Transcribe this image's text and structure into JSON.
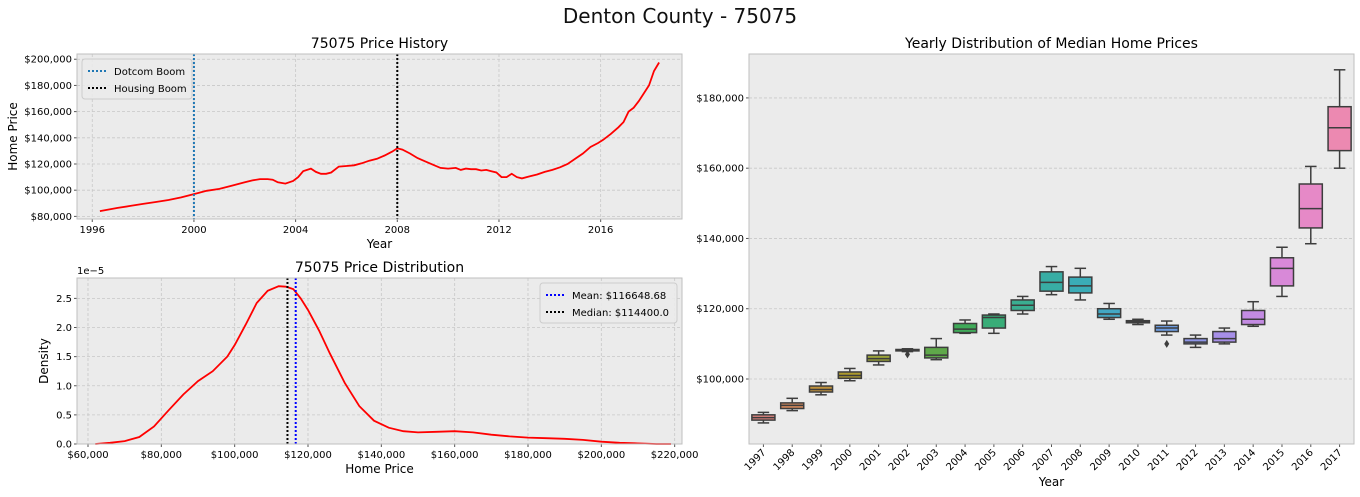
{
  "figure": {
    "suptitle": "Denton County - 75075"
  },
  "colors": {
    "axes_bg": "#ebebeb",
    "grid": "#c8c8c8",
    "spine": "#bfbfbf",
    "line": "#ff0000",
    "mean_line": "#0000ff",
    "median_line": "#000000",
    "dotcom_line": "#1f77b4",
    "housing_line": "#000000"
  },
  "chart_data": [
    {
      "id": "history",
      "type": "line",
      "title": "75075 Price History",
      "xlabel": "Year",
      "ylabel": "Home Price",
      "xlim": [
        1995.4,
        2019.2
      ],
      "ylim": [
        78000,
        204000
      ],
      "xticks": [
        1996,
        2000,
        2004,
        2008,
        2012,
        2016
      ],
      "xtick_labels": [
        "1996",
        "2000",
        "2004",
        "2008",
        "2012",
        "2016"
      ],
      "yticks": [
        80000,
        100000,
        120000,
        140000,
        160000,
        180000,
        200000
      ],
      "ytick_labels": [
        "$80,000",
        "$100,000",
        "$120,000",
        "$140,000",
        "$160,000",
        "$180,000",
        "$200,000"
      ],
      "grid": true,
      "legend": {
        "position": "upper-left",
        "entries": [
          "Dotcom Boom",
          "Housing Boom"
        ]
      },
      "vlines": [
        {
          "x": 2000,
          "label": "Dotcom Boom",
          "color": "#1f77b4"
        },
        {
          "x": 2008,
          "label": "Housing Boom",
          "color": "#000000"
        }
      ],
      "series": [
        {
          "x": [
            1996.3,
            1997,
            1997.5,
            1998,
            1998.5,
            1999,
            1999.5,
            2000,
            2000.5,
            2001,
            2001.5,
            2002,
            2002.3,
            2002.6,
            2002.9,
            2003.1,
            2003.3,
            2003.6,
            2003.9,
            2004.1,
            2004.3,
            2004.6,
            2004.8,
            2005,
            2005.2,
            2005.4,
            2005.7,
            2006,
            2006.3,
            2006.6,
            2006.9,
            2007.2,
            2007.5,
            2007.8,
            2008,
            2008.2,
            2008.5,
            2008.8,
            2009.1,
            2009.4,
            2009.7,
            2010,
            2010.3,
            2010.5,
            2010.7,
            2010.9,
            2011.1,
            2011.3,
            2011.5,
            2011.7,
            2011.9,
            2012.1,
            2012.3,
            2012.5,
            2012.7,
            2012.9,
            2013.2,
            2013.5,
            2013.8,
            2014.1,
            2014.4,
            2014.7,
            2015,
            2015.3,
            2015.6,
            2015.9,
            2016.1,
            2016.4,
            2016.7,
            2016.9,
            2017.1,
            2017.3,
            2017.5,
            2017.7,
            2017.9,
            2018.1,
            2018.3
          ],
          "y": [
            84000,
            86500,
            88000,
            89500,
            91000,
            92500,
            94500,
            97000,
            99500,
            101000,
            103500,
            106000,
            107500,
            108500,
            108500,
            108000,
            106000,
            105000,
            107000,
            110000,
            114500,
            116500,
            114000,
            112500,
            112500,
            113500,
            118000,
            118500,
            119000,
            120500,
            122500,
            124000,
            126500,
            129500,
            132000,
            131000,
            128000,
            124500,
            122000,
            119500,
            117000,
            116500,
            117000,
            115500,
            116500,
            116000,
            116000,
            115000,
            115500,
            114500,
            113500,
            110000,
            110000,
            112500,
            110000,
            109000,
            110500,
            112000,
            114000,
            115500,
            117500,
            120000,
            124000,
            128000,
            133000,
            136000,
            138500,
            143000,
            148000,
            152000,
            160000,
            163000,
            168000,
            174000,
            180000,
            191000,
            197500
          ]
        }
      ]
    },
    {
      "id": "distribution",
      "type": "line",
      "title": "75075 Price Distribution",
      "xlabel": "Home Price",
      "ylabel": "Density",
      "offset_text": "1e−5",
      "xlim": [
        57000,
        222000
      ],
      "ylim": [
        0,
        2.85
      ],
      "xticks": [
        60000,
        80000,
        100000,
        120000,
        140000,
        160000,
        180000,
        200000,
        220000
      ],
      "xtick_labels": [
        "$60,000",
        "$80,000",
        "$100,000",
        "$120,000",
        "$140,000",
        "$160,000",
        "$180,000",
        "$200,000",
        "$220,000"
      ],
      "yticks": [
        0,
        0.5,
        1.0,
        1.5,
        2.0,
        2.5
      ],
      "ytick_labels": [
        "0.0",
        "0.5",
        "1.0",
        "1.5",
        "2.0",
        "2.5"
      ],
      "grid": true,
      "legend": {
        "position": "upper-right",
        "entries": [
          "Mean: $116648.68",
          "Median: $114400.0"
        ]
      },
      "vlines": [
        {
          "x": 116648.68,
          "label": "Mean: $116648.68",
          "color": "#0000ff"
        },
        {
          "x": 114400,
          "label": "Median: $114400.0",
          "color": "#000000"
        }
      ],
      "series": [
        {
          "x": [
            62000,
            66000,
            70000,
            74000,
            78000,
            82000,
            86000,
            90000,
            94000,
            98000,
            100000,
            103000,
            106000,
            109000,
            112000,
            114000,
            116000,
            118000,
            120000,
            123000,
            126000,
            130000,
            134000,
            138000,
            142000,
            146000,
            150000,
            155000,
            160000,
            165000,
            170000,
            175000,
            180000,
            185000,
            190000,
            195000,
            200000,
            205000,
            210000,
            215000,
            219000
          ],
          "y": [
            0.0,
            0.02,
            0.05,
            0.12,
            0.3,
            0.58,
            0.85,
            1.08,
            1.25,
            1.5,
            1.7,
            2.05,
            2.42,
            2.63,
            2.71,
            2.7,
            2.66,
            2.5,
            2.3,
            1.95,
            1.55,
            1.05,
            0.65,
            0.4,
            0.28,
            0.22,
            0.2,
            0.21,
            0.22,
            0.2,
            0.16,
            0.13,
            0.11,
            0.1,
            0.09,
            0.07,
            0.04,
            0.02,
            0.01,
            0.0,
            0.0
          ]
        }
      ]
    },
    {
      "id": "yearly",
      "type": "box",
      "title": "Yearly Distribution of Median Home Prices",
      "xlabel": "Year",
      "ylabel": "",
      "ylim": [
        81500,
        192500
      ],
      "yticks": [
        100000,
        120000,
        140000,
        160000,
        180000
      ],
      "ytick_labels": [
        "$100,000",
        "$120,000",
        "$140,000",
        "$160,000",
        "$180,000"
      ],
      "grid": true,
      "categories": [
        "1997",
        "1998",
        "1999",
        "2000",
        "2001",
        "2002",
        "2003",
        "2004",
        "2005",
        "2006",
        "2007",
        "2008",
        "2009",
        "2010",
        "2011",
        "2012",
        "2013",
        "2014",
        "2015",
        "2016",
        "2017"
      ],
      "boxes": [
        {
          "min": 87500,
          "q1": 88300,
          "median": 89000,
          "q3": 89800,
          "max": 90500,
          "outliers": [],
          "color": "#e1847f"
        },
        {
          "min": 91000,
          "q1": 91600,
          "median": 92500,
          "q3": 93200,
          "max": 94500,
          "outliers": [],
          "color": "#d2885c"
        },
        {
          "min": 95500,
          "q1": 96300,
          "median": 97000,
          "q3": 98000,
          "max": 99000,
          "outliers": [],
          "color": "#c0923c"
        },
        {
          "min": 99500,
          "q1": 100200,
          "median": 101000,
          "q3": 102000,
          "max": 103000,
          "outliers": [],
          "color": "#ad9a2d"
        },
        {
          "min": 104000,
          "q1": 105000,
          "median": 105800,
          "q3": 106800,
          "max": 108000,
          "outliers": [],
          "color": "#9aa338"
        },
        {
          "min": 107800,
          "q1": 108000,
          "median": 108200,
          "q3": 108400,
          "max": 108600,
          "outliers": [
            107000
          ],
          "color": "#82a93e"
        },
        {
          "min": 105500,
          "q1": 106000,
          "median": 106800,
          "q3": 109000,
          "max": 111500,
          "outliers": [],
          "color": "#5fa84a"
        },
        {
          "min": 113000,
          "q1": 113200,
          "median": 114200,
          "q3": 115800,
          "max": 116800,
          "outliers": [],
          "color": "#40aa59"
        },
        {
          "min": 113000,
          "q1": 114500,
          "median": 117500,
          "q3": 118200,
          "max": 118500,
          "outliers": [],
          "color": "#39ad78"
        },
        {
          "min": 118500,
          "q1": 119500,
          "median": 121000,
          "q3": 122500,
          "max": 123500,
          "outliers": [],
          "color": "#3aae91"
        },
        {
          "min": 124000,
          "q1": 125000,
          "median": 127500,
          "q3": 130500,
          "max": 132000,
          "outliers": [],
          "color": "#38ada4"
        },
        {
          "min": 122500,
          "q1": 124500,
          "median": 126500,
          "q3": 129000,
          "max": 131500,
          "outliers": [],
          "color": "#3aacb7"
        },
        {
          "min": 117000,
          "q1": 117500,
          "median": 118500,
          "q3": 120000,
          "max": 121500,
          "outliers": [],
          "color": "#43a8c4"
        },
        {
          "min": 115500,
          "q1": 116000,
          "median": 116300,
          "q3": 116600,
          "max": 117000,
          "outliers": [],
          "color": "#4ea3d2"
        },
        {
          "min": 112500,
          "q1": 113500,
          "median": 114500,
          "q3": 115300,
          "max": 116500,
          "outliers": [
            110000
          ],
          "color": "#6c9be0"
        },
        {
          "min": 109000,
          "q1": 110000,
          "median": 110500,
          "q3": 111500,
          "max": 112500,
          "outliers": [],
          "color": "#8d94e8"
        },
        {
          "min": 110000,
          "q1": 110500,
          "median": 111500,
          "q3": 113500,
          "max": 114500,
          "outliers": [],
          "color": "#a78fe8"
        },
        {
          "min": 115000,
          "q1": 115500,
          "median": 117000,
          "q3": 119500,
          "max": 122000,
          "outliers": [],
          "color": "#c38be2"
        },
        {
          "min": 123500,
          "q1": 126500,
          "median": 131500,
          "q3": 134500,
          "max": 137500,
          "outliers": [],
          "color": "#d889d8"
        },
        {
          "min": 138500,
          "q1": 143000,
          "median": 148500,
          "q3": 155500,
          "max": 160500,
          "outliers": [],
          "color": "#e689c7"
        },
        {
          "min": 160000,
          "q1": 165000,
          "median": 171500,
          "q3": 177500,
          "max": 188000,
          "outliers": [],
          "color": "#ec89b1"
        }
      ]
    }
  ]
}
